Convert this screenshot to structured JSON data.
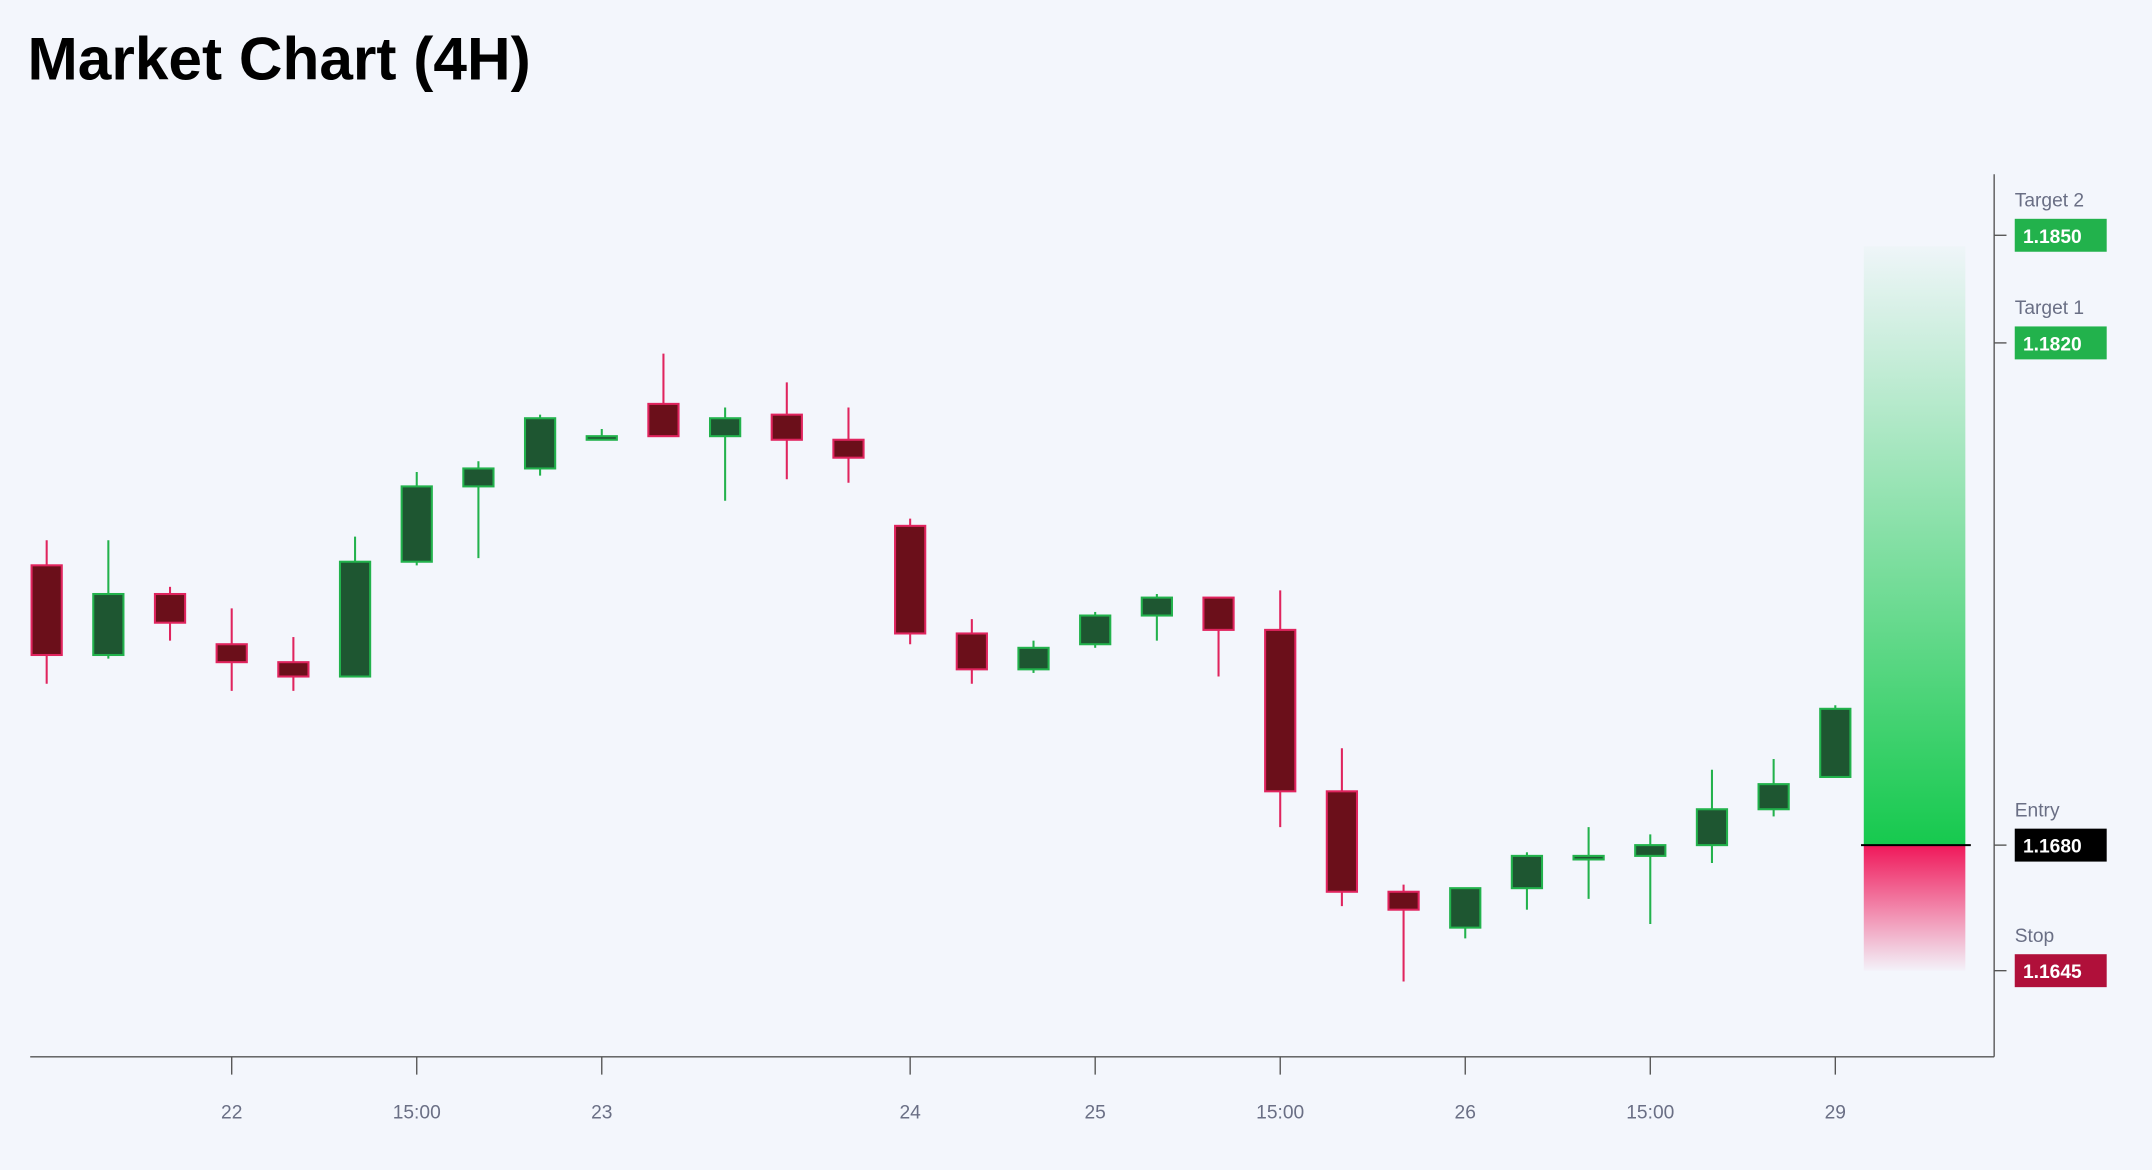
{
  "chart_data": {
    "type": "candlestick",
    "title": "Market Chart (4H)",
    "categories": [
      null,
      null,
      null,
      "22",
      null,
      null,
      "15:00",
      null,
      null,
      "23",
      null,
      null,
      null,
      null,
      "24",
      null,
      null,
      "25",
      null,
      null,
      "15:00",
      null,
      null,
      "26",
      null,
      null,
      "15:00",
      null,
      null,
      "29"
    ],
    "open": [
      1.1758,
      1.1733,
      1.175,
      1.1736,
      1.1731,
      1.1727,
      1.1759,
      1.178,
      1.1785,
      1.1793,
      1.1803,
      1.1794,
      1.18,
      1.1793,
      1.1769,
      1.1739,
      1.1729,
      1.1736,
      1.1744,
      1.1749,
      1.174,
      1.1695,
      1.1667,
      1.1657,
      1.1668,
      1.1676,
      1.1677,
      1.168,
      1.169,
      1.1699
    ],
    "high": [
      1.1765,
      1.1765,
      1.1752,
      1.1746,
      1.1738,
      1.1766,
      1.1784,
      1.1787,
      1.18,
      1.1796,
      1.1817,
      1.1802,
      1.1809,
      1.1802,
      1.1771,
      1.1743,
      1.1737,
      1.1745,
      1.175,
      1.1749,
      1.1751,
      1.1707,
      1.1669,
      1.1668,
      1.1678,
      1.1685,
      1.1683,
      1.1701,
      1.1704,
      1.1719
    ],
    "low": [
      1.1725,
      1.1732,
      1.1737,
      1.1723,
      1.1723,
      1.1727,
      1.1758,
      1.176,
      1.1783,
      1.1793,
      1.1794,
      1.1776,
      1.1782,
      1.1781,
      1.1736,
      1.1725,
      1.1728,
      1.1735,
      1.1737,
      1.1727,
      1.1685,
      1.1663,
      1.1642,
      1.1654,
      1.1662,
      1.1665,
      1.1658,
      1.1675,
      1.1688,
      1.1699
    ],
    "close": [
      1.1733,
      1.175,
      1.1742,
      1.1731,
      1.1727,
      1.1759,
      1.178,
      1.1785,
      1.1799,
      1.1794,
      1.1794,
      1.1799,
      1.1793,
      1.1788,
      1.1739,
      1.1729,
      1.1735,
      1.1744,
      1.1749,
      1.174,
      1.1695,
      1.1667,
      1.1662,
      1.1668,
      1.1677,
      1.1677,
      1.168,
      1.169,
      1.1697,
      1.1718
    ],
    "up_color": "#22b24c",
    "down_color": "#e0245e",
    "ylim": [
      1.1621,
      1.1867
    ],
    "levels": [
      {
        "name": "Target 2",
        "value": 1.185,
        "label": "1.1850",
        "color": "#22b24c"
      },
      {
        "name": "Target 1",
        "value": 1.182,
        "label": "1.1820",
        "color": "#22b24c"
      },
      {
        "name": "Entry",
        "value": 1.168,
        "label": "1.1680",
        "color": "#000000"
      },
      {
        "name": "Stop",
        "value": 1.1645,
        "label": "1.1645",
        "color": "#b0103a"
      }
    ]
  }
}
